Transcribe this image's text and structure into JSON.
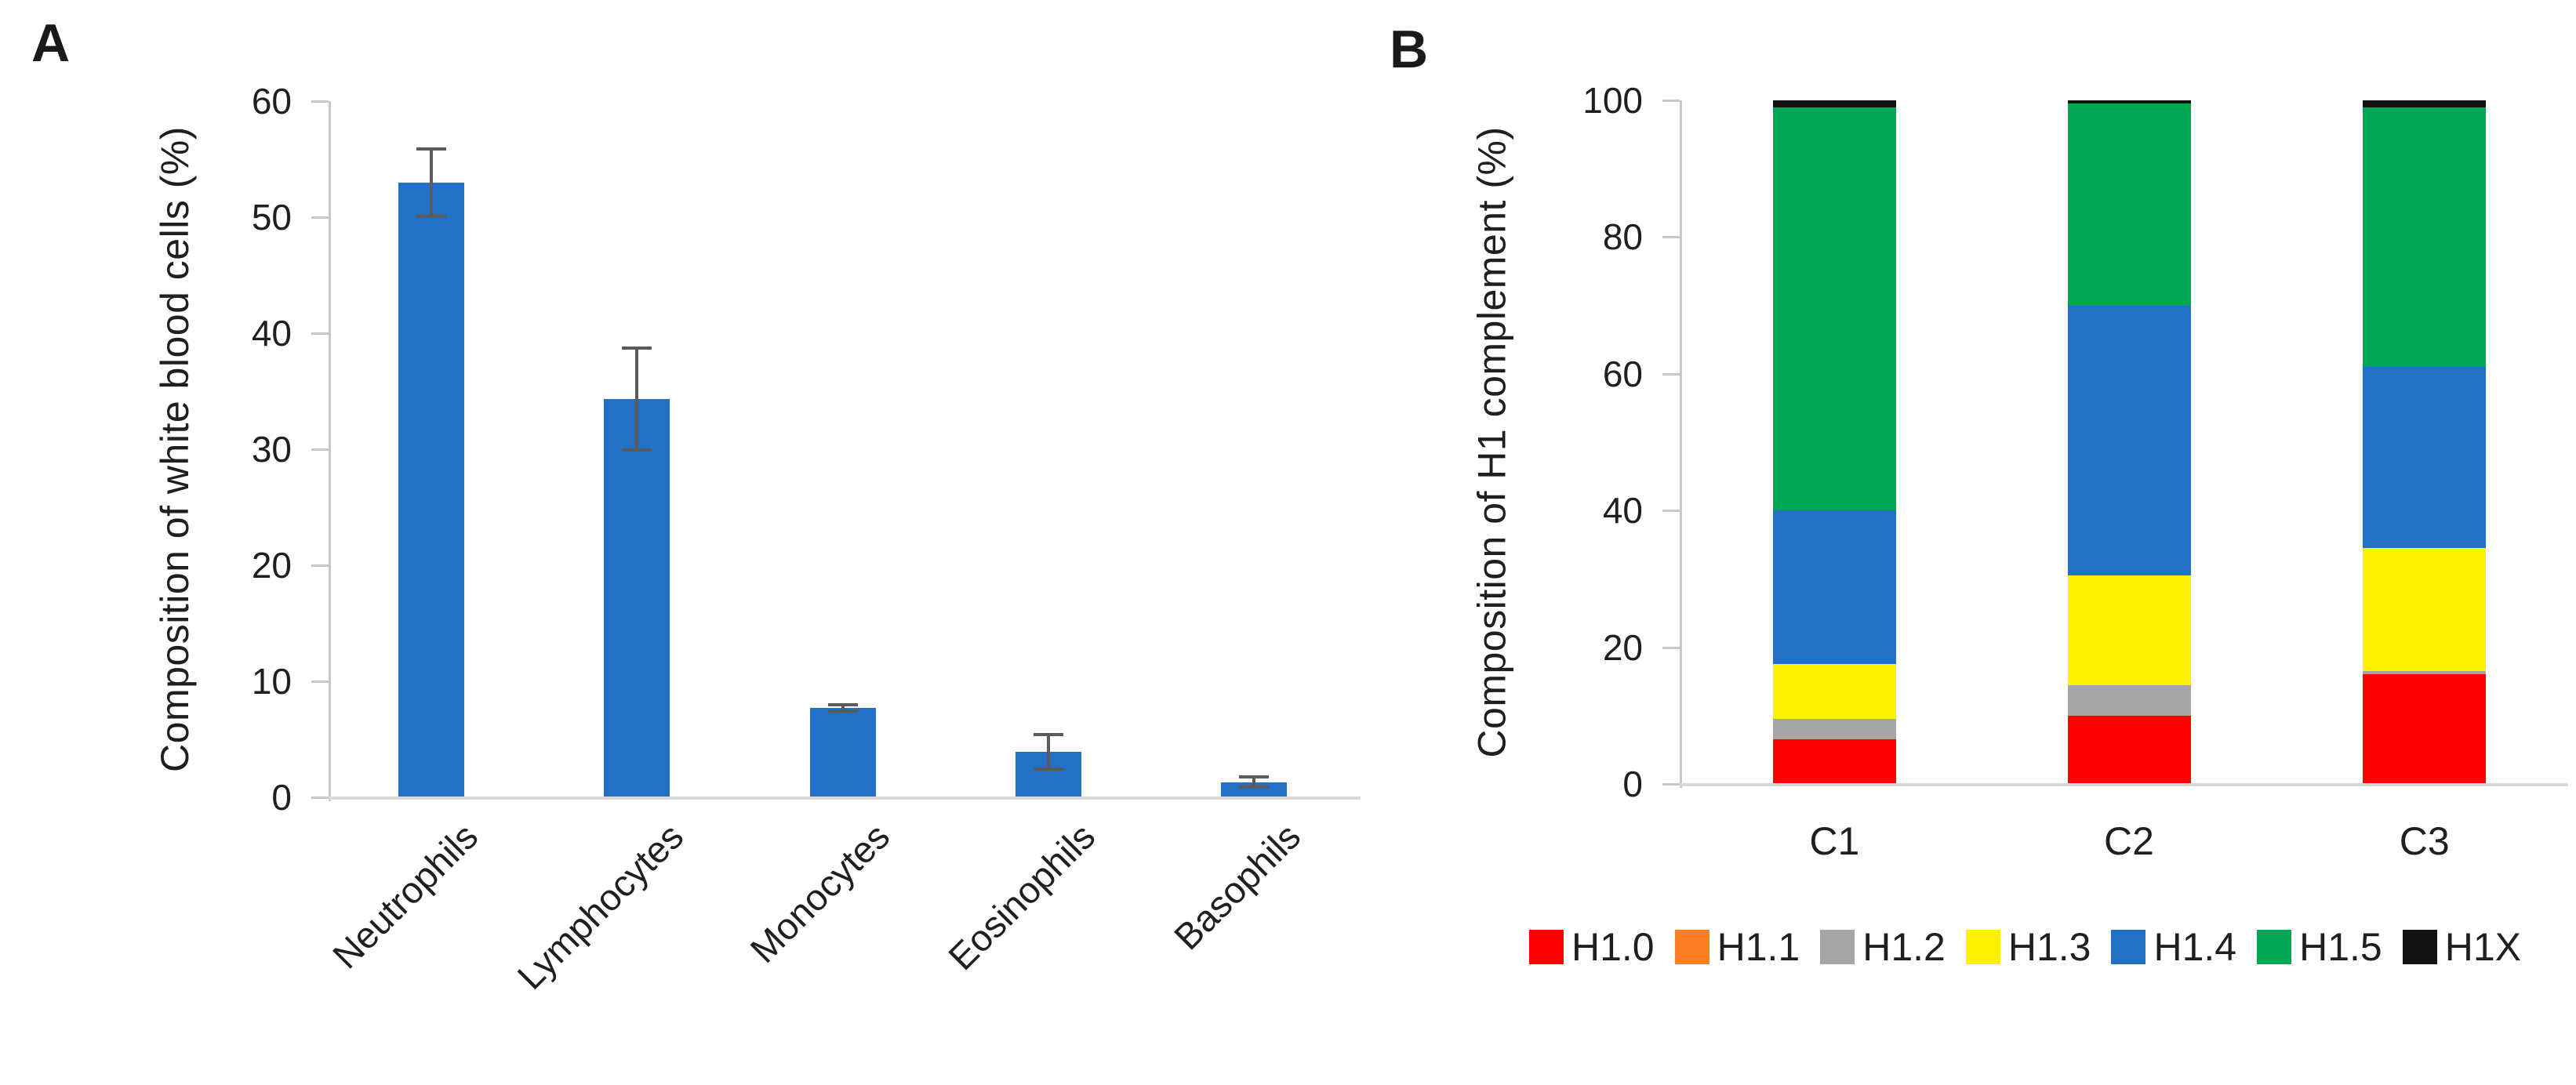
{
  "figure": {
    "panel_a_label": "A",
    "panel_b_label": "B"
  },
  "colors": {
    "bar_blue": "#2271c6",
    "error_gray": "#5b5b5b",
    "axis_gray": "#c8c8c8",
    "baseline_gray": "#d9d9d9",
    "text": "#1f1f1f"
  },
  "chart_data": [
    {
      "id": "wbc-composition",
      "type": "bar",
      "title": "",
      "ylabel": "Composition of white blood cells (%)",
      "xlabel": "",
      "categories": [
        "Neutrophils",
        "Lymphocytes",
        "Monocytes",
        "Eosinophils",
        "Basophils"
      ],
      "values": [
        53,
        34.3,
        7.7,
        3.9,
        1.3
      ],
      "error_bars": [
        2.9,
        4.4,
        0.25,
        1.5,
        0.45
      ],
      "ylim": [
        0,
        60
      ],
      "yticks": [
        0,
        10,
        20,
        30,
        40,
        50,
        60
      ],
      "bar_color": "#2271c6",
      "grid": false,
      "legend_position": "none"
    },
    {
      "id": "h1-complement",
      "type": "bar",
      "stacked": true,
      "title": "",
      "ylabel": "Composition of H1 complement (%)",
      "xlabel": "",
      "categories": [
        "C1",
        "C2",
        "C3"
      ],
      "series": [
        {
          "name": "H1.0",
          "color": "#fe0000",
          "values": [
            6.5,
            10,
            16
          ]
        },
        {
          "name": "H1.1",
          "color": "#ff7f27",
          "values": [
            0,
            0,
            0
          ]
        },
        {
          "name": "H1.2",
          "color": "#a6a6a6",
          "values": [
            3,
            4.5,
            0.5
          ]
        },
        {
          "name": "H1.3",
          "color": "#fff200",
          "values": [
            8,
            16,
            18
          ]
        },
        {
          "name": "H1.4",
          "color": "#2271c6",
          "values": [
            22.5,
            39.5,
            26.5
          ]
        },
        {
          "name": "H1.5",
          "color": "#00a651",
          "values": [
            59,
            29.5,
            38
          ]
        },
        {
          "name": "H1X",
          "color": "#111111",
          "values": [
            1,
            0.5,
            1
          ]
        }
      ],
      "ylim": [
        0,
        100
      ],
      "yticks": [
        0,
        20,
        40,
        60,
        80,
        100
      ],
      "grid": false,
      "legend_position": "bottom"
    }
  ]
}
